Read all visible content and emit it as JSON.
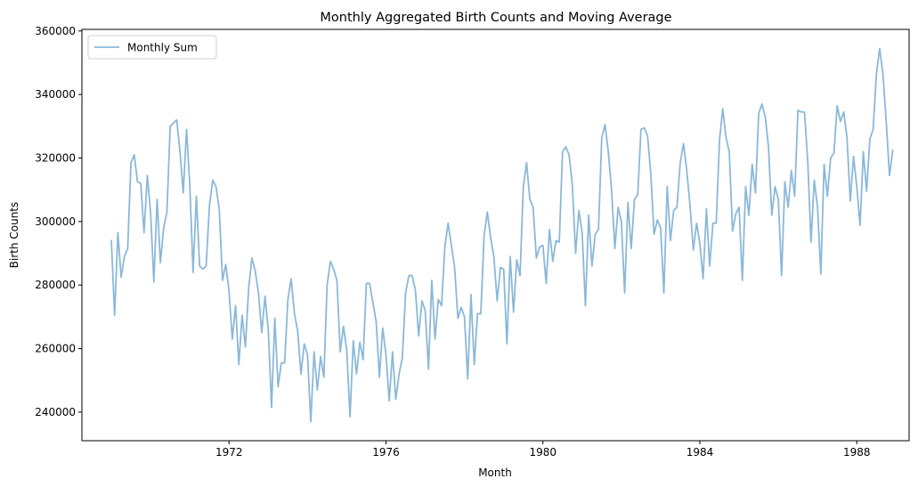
{
  "chart_data": {
    "type": "line",
    "title": "Monthly Aggregated Birth Counts and Moving Average",
    "xlabel": "Month",
    "ylabel": "Birth Counts",
    "x_ticks": [
      "1972",
      "1976",
      "1980",
      "1984",
      "1988"
    ],
    "y_ticks": [
      "240000",
      "260000",
      "280000",
      "300000",
      "320000",
      "340000",
      "360000"
    ],
    "xlim": [
      "1968-04",
      "1989-05"
    ],
    "ylim": [
      231000,
      360500
    ],
    "grid": false,
    "legend_position": "upper-left",
    "x_start": "1969-01",
    "x_step": "month",
    "series": [
      {
        "name": "Monthly Sum",
        "color": "#8bb8d9",
        "values": [
          294000,
          270500,
          296500,
          282500,
          289000,
          291500,
          318500,
          321000,
          312500,
          312000,
          296500,
          314500,
          303000,
          281000,
          307000,
          287000,
          298000,
          303000,
          330000,
          331000,
          332000,
          322000,
          309000,
          329000,
          311500,
          284000,
          308000,
          286000,
          285000,
          286000,
          305000,
          313000,
          311000,
          304000,
          281500,
          286500,
          278000,
          263000,
          273500,
          255000,
          270500,
          260500,
          279000,
          288500,
          284500,
          277500,
          265000,
          276500,
          266000,
          241500,
          269500,
          248000,
          255500,
          255500,
          275500,
          282000,
          271000,
          265500,
          252000,
          261500,
          258000,
          237000,
          259000,
          247000,
          257500,
          251000,
          280000,
          287500,
          285000,
          281500,
          259000,
          267000,
          259500,
          238500,
          262500,
          252000,
          262000,
          256500,
          280500,
          280500,
          274500,
          268500,
          251000,
          266500,
          258000,
          243500,
          259000,
          244000,
          252000,
          257000,
          277500,
          283000,
          283000,
          278500,
          264000,
          275000,
          272000,
          253500,
          281500,
          263000,
          275500,
          273500,
          292000,
          299500,
          292500,
          285500,
          269500,
          273000,
          270000,
          250500,
          277000,
          255000,
          271000,
          271000,
          295500,
          303000,
          295000,
          289000,
          275000,
          285500,
          285000,
          261500,
          289000,
          271500,
          288000,
          283000,
          311000,
          318500,
          307000,
          304500,
          288500,
          292000,
          292500,
          280500,
          297500,
          287500,
          294000,
          293500,
          322000,
          323500,
          321000,
          311500,
          290000,
          303500,
          296500,
          273500,
          302000,
          286000,
          296000,
          297500,
          326500,
          330500,
          322000,
          310000,
          291500,
          304500,
          300000,
          277500,
          306000,
          291500,
          307000,
          308500,
          329000,
          329500,
          327000,
          315000,
          296000,
          300500,
          298000,
          277500,
          311000,
          294000,
          303500,
          304500,
          318500,
          324500,
          316000,
          305000,
          291000,
          299500,
          293000,
          282000,
          304000,
          286000,
          299500,
          299500,
          325500,
          335500,
          326500,
          322000,
          297000,
          302500,
          304500,
          281500,
          311000,
          302000,
          318000,
          309000,
          334000,
          337000,
          333000,
          323500,
          302000,
          311000,
          307000,
          283000,
          312500,
          304500,
          316000,
          308000,
          335000,
          334500,
          334500,
          319000,
          293500,
          313000,
          304500,
          283500,
          318000,
          308000,
          320000,
          321500,
          336500,
          331500,
          334500,
          326500,
          306500,
          320500,
          311000,
          298800,
          322000,
          309500,
          326000,
          329000,
          346500,
          354500,
          346500,
          331500,
          314500,
          322500
        ]
      }
    ]
  }
}
